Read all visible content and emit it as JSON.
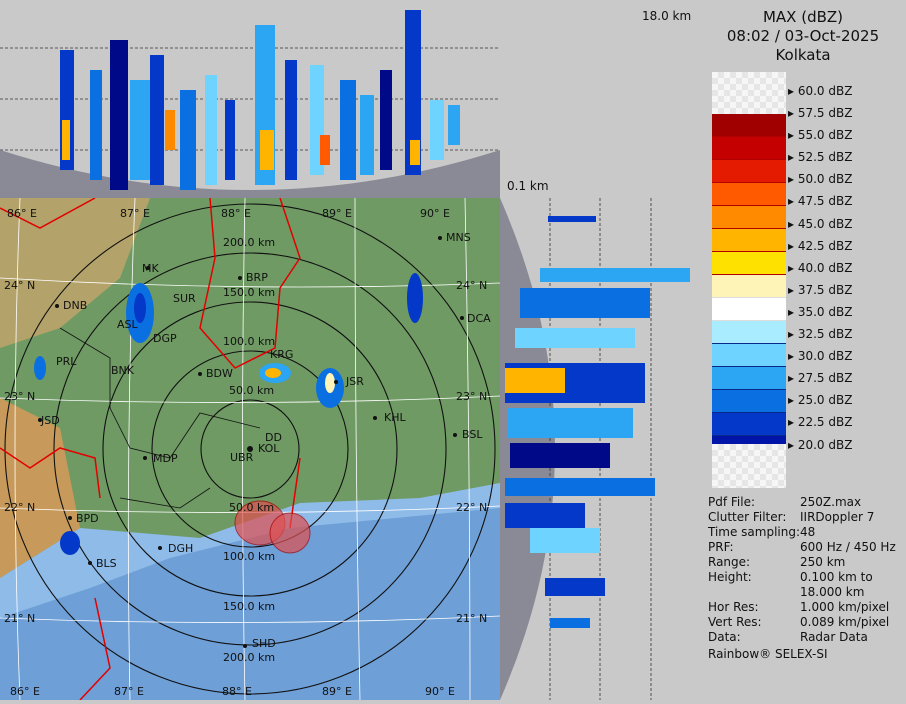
{
  "legend": {
    "title": "MAX (dBZ)",
    "datetime": "08:02 / 03-Oct-2025",
    "station": "Kolkata",
    "scale": [
      {
        "label": "60.0 dBZ",
        "color": ""
      },
      {
        "label": "57.5 dBZ",
        "color": "#a00000"
      },
      {
        "label": "55.0 dBZ",
        "color": "#c40000"
      },
      {
        "label": "52.5 dBZ",
        "color": "#e41b00"
      },
      {
        "label": "50.0 dBZ",
        "color": "#ff5a00"
      },
      {
        "label": "47.5 dBZ",
        "color": "#ff8a00"
      },
      {
        "label": "45.0 dBZ",
        "color": "#ffb400"
      },
      {
        "label": "42.5 dBZ",
        "color": "#ffe100"
      },
      {
        "label": "40.0 dBZ",
        "color": "#fff4b8"
      },
      {
        "label": "37.5 dBZ",
        "color": "#ffffff"
      },
      {
        "label": "35.0 dBZ",
        "color": "#a9ecff"
      },
      {
        "label": "32.5 dBZ",
        "color": "#6fd3ff"
      },
      {
        "label": "30.0 dBZ",
        "color": "#2ca5f2"
      },
      {
        "label": "27.5 dBZ",
        "color": "#0a6fe0"
      },
      {
        "label": "25.0 dBZ",
        "color": "#0338c8"
      },
      {
        "label": "22.5 dBZ",
        "color": "#0014a8"
      },
      {
        "label": "20.0 dBZ",
        "color": "#000a88"
      }
    ]
  },
  "info": [
    {
      "key": "Pdf File:",
      "value": "250Z.max"
    },
    {
      "key": "Clutter Filter:",
      "value": "IIRDoppler 7"
    },
    {
      "key": "Time sampling:",
      "value": "48"
    },
    {
      "key": "PRF:",
      "value": "600 Hz / 450 Hz"
    },
    {
      "key": "Range:",
      "value": "250 km"
    },
    {
      "key": "Height:",
      "value": "0.100 km to"
    },
    {
      "key": "",
      "value": "18.000 km"
    },
    {
      "key": "Hor Res:",
      "value": "1.000 km/pixel"
    },
    {
      "key": "Vert Res:",
      "value": "0.089 km/pixel"
    },
    {
      "key": "Data:",
      "value": "Radar Data"
    }
  ],
  "vendor": "Rainbow® SELEX-SI",
  "height_top": "18.0 km",
  "height_bottom": "0.1 km",
  "map": {
    "lon_top": [
      "86° E",
      "87° E",
      "88° E",
      "89° E",
      "90° E"
    ],
    "lon_bottom": [
      "86° E",
      "87° E",
      "88° E",
      "89° E",
      "90° E"
    ],
    "lat_left": [
      "24° N",
      "23° N",
      "22° N",
      "21° N"
    ],
    "lat_right": [
      "24° N",
      "23° N",
      "22° N",
      "21° N"
    ],
    "ranges": [
      "200.0 km",
      "150.0 km",
      "100.0 km",
      "50.0 km",
      "50.0 km",
      "100.0 km",
      "150.0 km",
      "200.0 km"
    ],
    "cities": [
      "MNS",
      "BRP",
      "MK",
      "SUR",
      "DNB",
      "DCA",
      "ASL",
      "DGP",
      "KRG",
      "PRL",
      "BNK",
      "BDW",
      "JSR",
      "JSD",
      "KOL",
      "DD",
      "UBR",
      "KHL",
      "BSL",
      "MDP",
      "BPD",
      "DGH",
      "BLS",
      "SHD"
    ]
  }
}
